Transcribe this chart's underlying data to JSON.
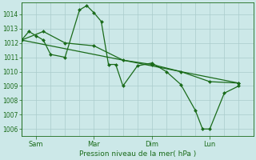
{
  "bg_color": "#cce8e8",
  "grid_color": "#aacccc",
  "line_color": "#1a6b1a",
  "marker_color": "#1a6b1a",
  "xlabel": "Pression niveau de la mer( hPa )",
  "ylim": [
    1005.5,
    1014.8
  ],
  "yticks": [
    1006,
    1007,
    1008,
    1009,
    1010,
    1011,
    1012,
    1013,
    1014
  ],
  "xlim": [
    0,
    96
  ],
  "xtick_positions": [
    6,
    30,
    54,
    78
  ],
  "xtick_labels": [
    "Sam",
    "Mar",
    "Dim",
    "Lun"
  ],
  "xgrid_positions": [
    0,
    6,
    12,
    18,
    24,
    30,
    36,
    42,
    48,
    54,
    60,
    66,
    72,
    78,
    84,
    90,
    96
  ],
  "series1_x": [
    0,
    3,
    6,
    9,
    12,
    18,
    24,
    27,
    30,
    33,
    36,
    39,
    42,
    48,
    54,
    60,
    66,
    72,
    75,
    78,
    84,
    90
  ],
  "series1_y": [
    1012.2,
    1012.8,
    1012.5,
    1012.2,
    1011.2,
    1011.0,
    1014.3,
    1014.6,
    1014.1,
    1013.5,
    1010.5,
    1010.5,
    1009.0,
    1010.4,
    1010.6,
    1010.0,
    1009.1,
    1007.3,
    1006.0,
    1006.0,
    1008.5,
    1009.0
  ],
  "series2_x": [
    0,
    90
  ],
  "series2_y": [
    1012.2,
    1009.2
  ],
  "series3_x": [
    0,
    9,
    18,
    30,
    42,
    54,
    66,
    78,
    90
  ],
  "series3_y": [
    1012.2,
    1012.8,
    1012.0,
    1011.8,
    1010.8,
    1010.5,
    1010.0,
    1009.3,
    1009.2
  ]
}
